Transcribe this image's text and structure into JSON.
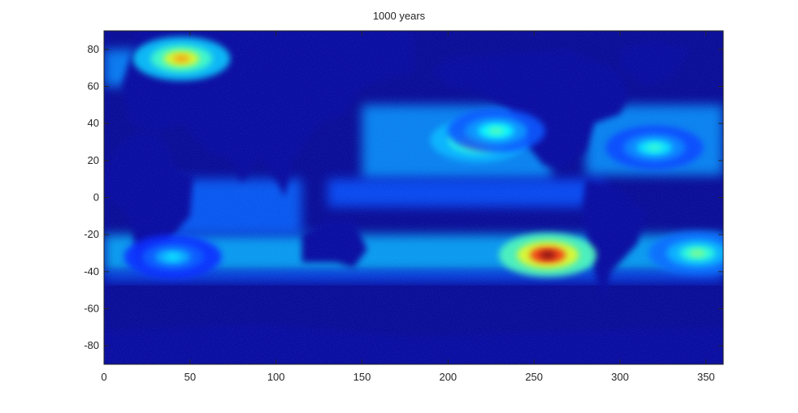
{
  "chart_data": {
    "type": "heatmap",
    "title": "1000 years",
    "xlabel": "",
    "ylabel": "",
    "xlim": [
      0,
      360
    ],
    "ylim": [
      -90,
      90
    ],
    "xticks": [
      0,
      50,
      100,
      150,
      200,
      250,
      300,
      350
    ],
    "yticks": [
      80,
      60,
      40,
      20,
      0,
      -20,
      -40,
      -60,
      -80
    ],
    "colormap": "jet",
    "background_color": "#00008f",
    "grid": false,
    "legend": "none",
    "hotspots": [
      {
        "lon": 258,
        "lat": -31,
        "intensity": 1.0
      },
      {
        "lon": 218,
        "lat": 31,
        "intensity": 0.68
      },
      {
        "lon": 228,
        "lat": 36,
        "intensity": 0.45
      },
      {
        "lon": 345,
        "lat": -30,
        "intensity": 0.5
      },
      {
        "lon": 320,
        "lat": 27,
        "intensity": 0.42
      },
      {
        "lon": 45,
        "lat": 75,
        "intensity": 0.72
      },
      {
        "lon": 40,
        "lat": -32,
        "intensity": 0.35
      }
    ]
  }
}
